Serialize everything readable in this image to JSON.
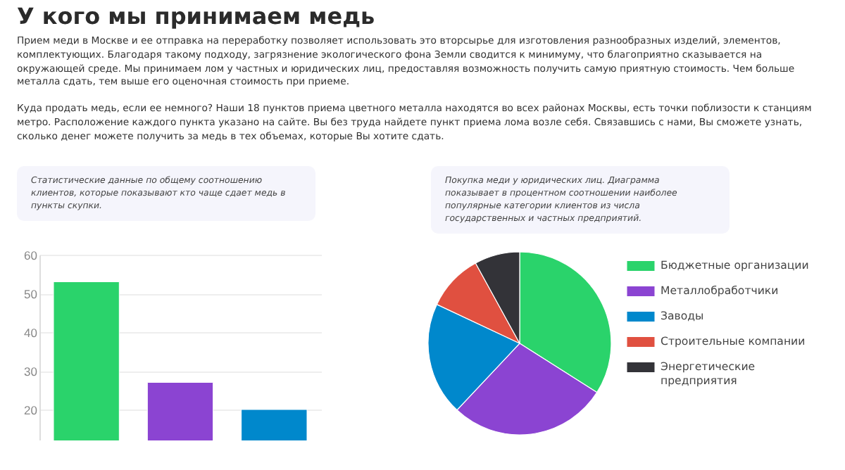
{
  "chart_data": [
    {
      "type": "bar",
      "title": "У кого мы принимаем медь",
      "subtitle": "Статистические данные по общему соотношению клиентов, которые показывают кто чаще сдает медь в пункты скупки.",
      "annotations": [
        "Прием меди в Москве и ее отправка на переработку позволяет использовать это вторсырье для изготовления разнообразных изделий, элементов, комплектующих. Благодаря такому подходу, загрязнение экологического фона Земли сводится к минимуму, что благоприятно сказывается на окружающей среде. Мы принимаем лом у частных и юридических лиц, предоставляя возможность получить самую приятную стоимость. Чем больше металла сдать, тем выше его оценочная стоимость при приеме.",
        "Куда продать медь, если ее немного? Наши 18 пунктов приема цветного металла находятся во всех районах Москвы, есть точки поблизости к станциям метро. Расположение каждого пункта указано на сайте. Вы без труда найдете пункт приема лома возле себя. Связавшись с нами, Вы сможете узнать, сколько денег можете получить за медь в тех объемах, которые Вы хотите сдать."
      ],
      "categories": [
        null,
        null,
        null
      ],
      "values": [
        53,
        27,
        20
      ],
      "colors": [
        "#2ad36b",
        "#8b44d2",
        "#0088cc"
      ],
      "ylim": [
        12,
        60
      ],
      "yticks": [
        20,
        30,
        40,
        50,
        60
      ],
      "grid": "y"
    },
    {
      "type": "pie",
      "subtitle": "Покупка меди у юридических лиц. Диаграмма показывает в процентном соотношении наиболее популярные категории клиентов из числа государственных и частных предприятий.",
      "categories": [
        "Бюджетные организации",
        "Металлобработчики",
        "Заводы",
        "Строительные компании",
        "Энергетические предприятия"
      ],
      "values": [
        34,
        28,
        20,
        10,
        8
      ],
      "colors": [
        "#2ad36b",
        "#8b44d2",
        "#0088cc",
        "#e05040",
        "#333338"
      ],
      "legend": "right"
    }
  ]
}
